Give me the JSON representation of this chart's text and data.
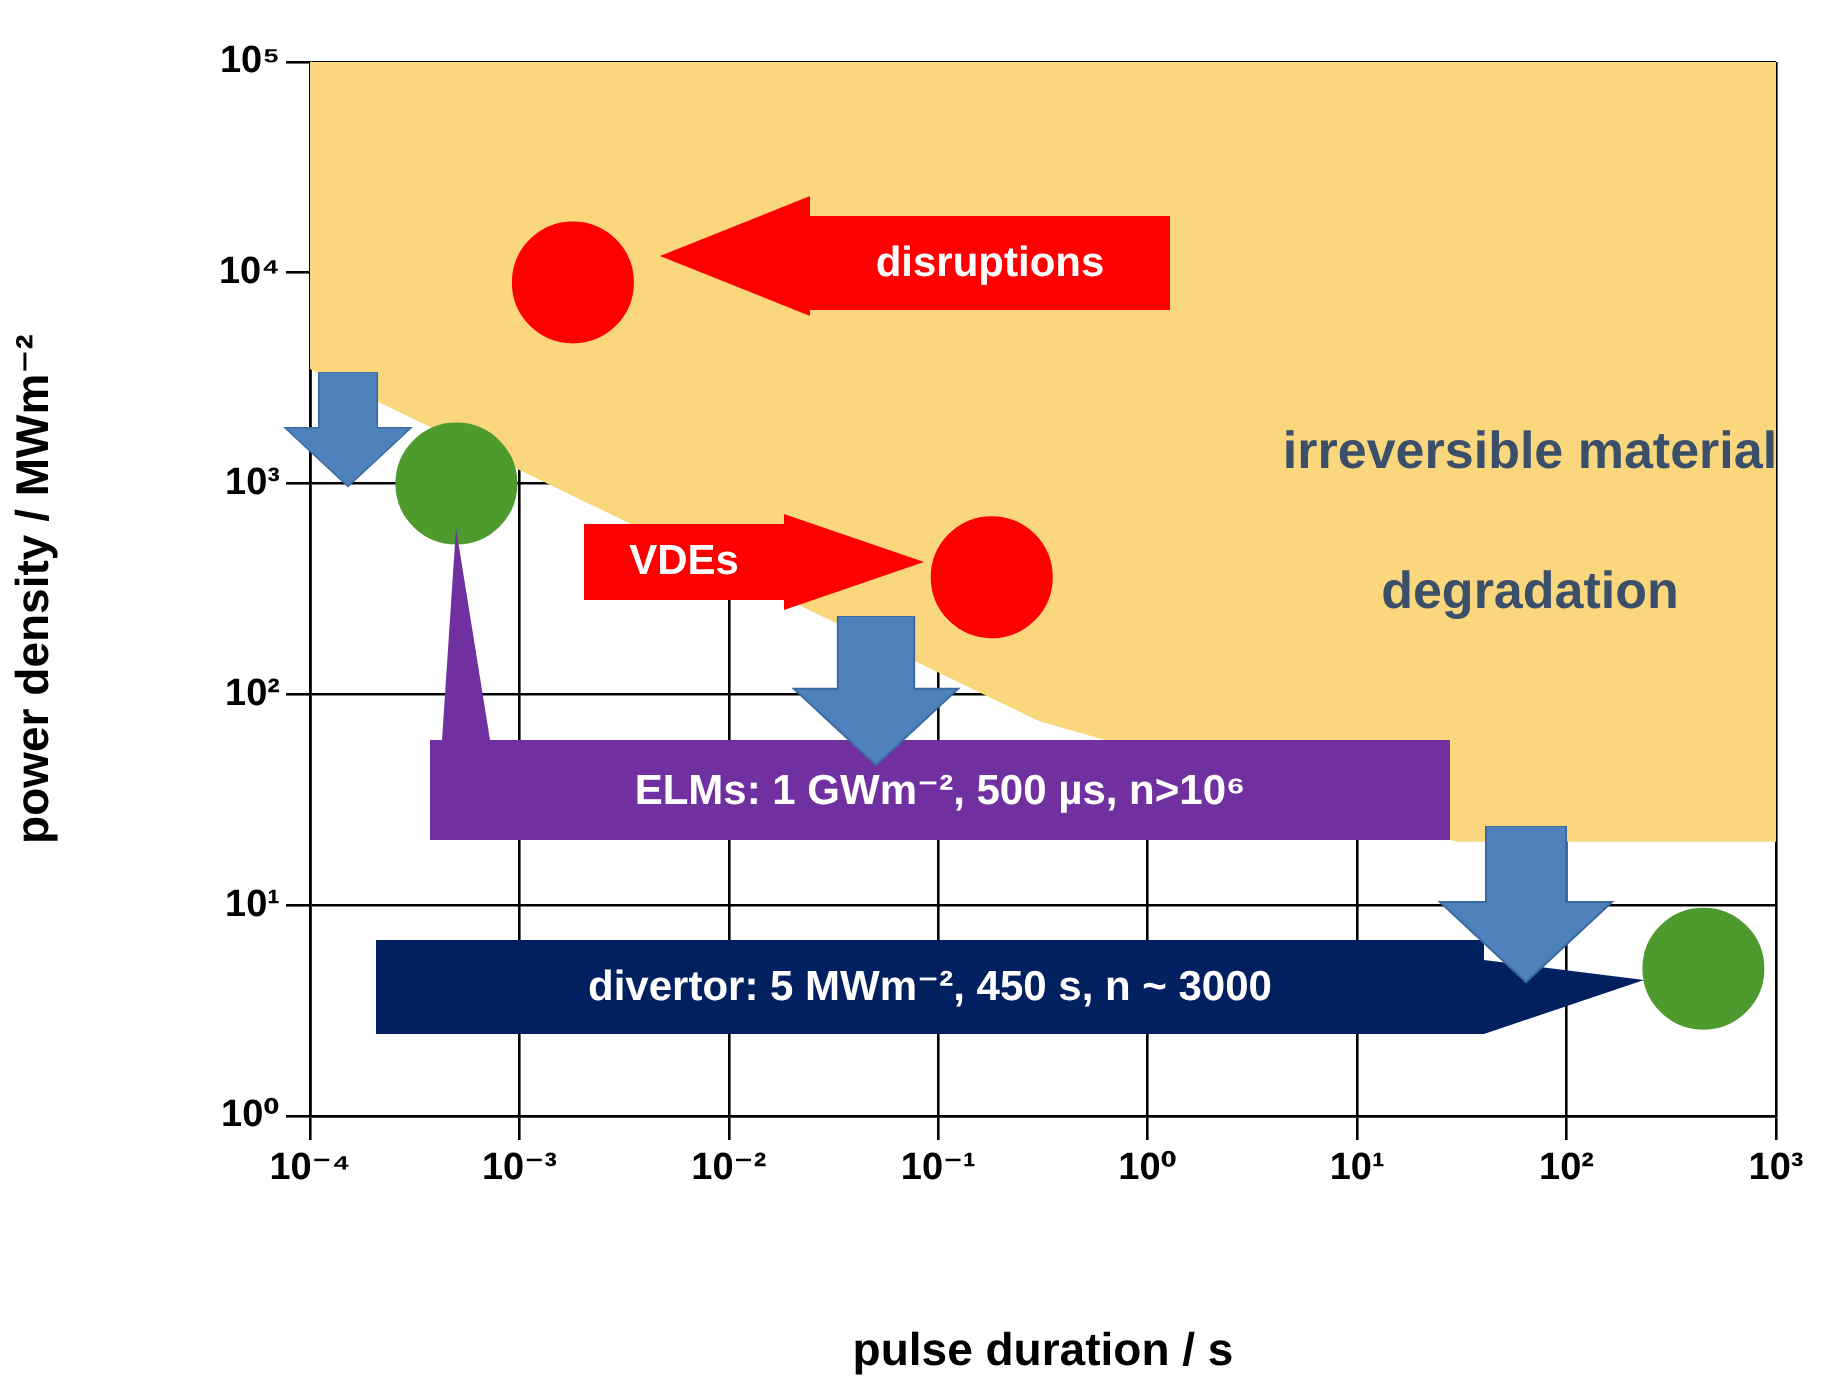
{
  "chart_data": {
    "type": "scatter",
    "xlabel": "pulse duration / s",
    "ylabel": "power density / MWm⁻²",
    "log": "xy",
    "xlim": [
      0.0001,
      1000
    ],
    "ylim": [
      1,
      100000
    ],
    "xticks": [
      {
        "value": 0.0001,
        "label": "10⁻⁴"
      },
      {
        "value": 0.001,
        "label": "10⁻³"
      },
      {
        "value": 0.01,
        "label": "10⁻²"
      },
      {
        "value": 0.1,
        "label": "10⁻¹"
      },
      {
        "value": 1,
        "label": "10⁰"
      },
      {
        "value": 10,
        "label": "10¹"
      },
      {
        "value": 100,
        "label": "10²"
      },
      {
        "value": 1000,
        "label": "10³"
      }
    ],
    "yticks": [
      {
        "value": 1,
        "label": "10⁰"
      },
      {
        "value": 10,
        "label": "10¹"
      },
      {
        "value": 100,
        "label": "10²"
      },
      {
        "value": 1000,
        "label": "10³"
      },
      {
        "value": 10000,
        "label": "10⁴"
      },
      {
        "value": 100000,
        "label": "10⁵"
      }
    ],
    "grid": true,
    "legend": false,
    "series": [
      {
        "type": "area",
        "color": "#fad67c",
        "x": [
          0.0001,
          0.0001,
          0.3,
          30,
          1000,
          1000
        ],
        "values": [
          100000,
          3500,
          75,
          20,
          20,
          100000
        ]
      },
      {
        "color": "#ff0000",
        "marker": "circle",
        "x": [
          0.0018,
          0.18
        ],
        "values": [
          9000,
          360
        ]
      },
      {
        "color": "#4e9a2e",
        "marker": "circle",
        "x": [
          0.0005,
          450
        ],
        "values": [
          1000,
          5
        ]
      }
    ],
    "annotations": [
      "disruptions",
      "VDEs",
      "ELMs: 1 GWm⁻², 500 µs, n>10⁶",
      "divertor: 5 MWm⁻², 450 s, n ~ 3000",
      "irreversible material degradation"
    ]
  }
}
